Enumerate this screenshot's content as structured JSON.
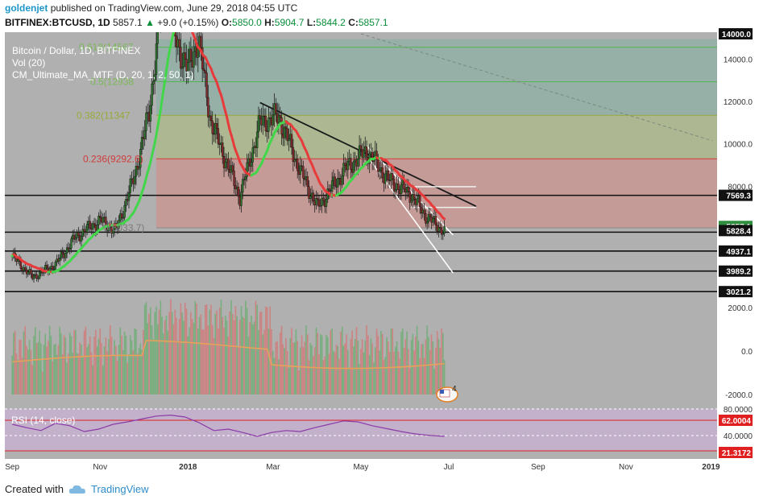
{
  "header": {
    "user": "goldenjet",
    "published": "published on TradingView.com, June 29, 2018 04:55 UTC",
    "symbol": "BITFINEX:BTCUSD, 1D",
    "price": "5857.1",
    "change": "+9.0 (+0.15%)",
    "open_label": "O:",
    "open": "5850.0",
    "high_label": "H:",
    "high": "5904.7",
    "low_label": "L:",
    "low": "5844.2",
    "close_label": "C:",
    "close": "5857.1"
  },
  "legend": {
    "title": "Bitcoin / Dollar, 1D, BITFINEX",
    "vol": "Vol (20)",
    "ma": "CM_Ultimate_MA_MTF (D, 20, 1, 2, 50, 1)",
    "rsi": "RSI (14, close)"
  },
  "footer": {
    "created_with": "Created with",
    "brand": "TradingView"
  },
  "colors": {
    "background": "#b0b0b0",
    "rsi_band": "#c8b2d2",
    "fib_red": "#c79994",
    "fib_olive": "#adb990",
    "fib_green": "#93b0a6",
    "ma_red": "#e73b3b",
    "ma_green": "#42d64a",
    "rsi_line": "#8b3aa8",
    "rsi_bound": "#e02020",
    "axis_label_bg": "#111111"
  },
  "chart_data": [
    {
      "type": "line",
      "title": "Bitcoin / Dollar, 1D, BITFINEX",
      "x_ticks": [
        "Sep",
        "Nov",
        "2018",
        "Mar",
        "May",
        "Jul",
        "Sep",
        "Nov",
        "2019"
      ],
      "y_ticks": [
        14000,
        12000,
        10000,
        8000,
        6000
      ],
      "y_range": [
        2800,
        15200
      ],
      "price_path": {
        "x": [
          "2017-09-01",
          "2017-09-15",
          "2017-10-01",
          "2017-10-15",
          "2017-11-01",
          "2017-11-12",
          "2017-11-25",
          "2017-12-05",
          "2017-12-10",
          "2017-12-17",
          "2017-12-23",
          "2018-01-01",
          "2018-01-08",
          "2018-01-17",
          "2018-02-06",
          "2018-02-20",
          "2018-03-05",
          "2018-03-20",
          "2018-04-01",
          "2018-04-20",
          "2018-05-05",
          "2018-05-20",
          "2018-06-05",
          "2018-06-15",
          "2018-06-28"
        ],
        "close": [
          4700,
          3700,
          4300,
          5600,
          6400,
          5900,
          8500,
          11500,
          14500,
          19000,
          15000,
          13500,
          15000,
          11000,
          7500,
          11000,
          11300,
          8700,
          7000,
          8800,
          9700,
          8300,
          7600,
          6600,
          5857
        ]
      },
      "fib_levels": [
        {
          "label": "0.236(9292.6)",
          "value": 9292.6
        },
        {
          "label": "0.382(11347",
          "value": 11347
        },
        {
          "label": "0.5(12938",
          "value": 12938
        },
        {
          "label": "0.618(14567",
          "value": 14567
        },
        {
          "label": "0(6033.7)",
          "value": 6033.7
        }
      ],
      "horizontal_levels": [
        7569.3,
        5828.4,
        4937.1,
        3989.2,
        3021.2
      ],
      "price_labels": [
        "7569.3",
        "5857.1",
        "5828.4",
        "4937.1",
        "3989.2",
        "3021.2"
      ],
      "top_label": "14000.0"
    },
    {
      "type": "bar",
      "title": "Vol (20)",
      "y_ticks": [
        2000,
        0,
        -2000
      ],
      "y_tick_labels": [
        "2000.0",
        "0.0",
        "-2000.0"
      ]
    },
    {
      "type": "line",
      "title": "RSI (14, close)",
      "y_ticks": [
        80,
        40
      ],
      "y_tick_labels": [
        "80.0000",
        "40.0000"
      ],
      "bounds": [
        "62.0004",
        "21.3172"
      ],
      "values": [
        55,
        48,
        42,
        57,
        52,
        40,
        45,
        55,
        60,
        66,
        72,
        74,
        70,
        58,
        42,
        45,
        38,
        30,
        38,
        42,
        40,
        48,
        55,
        62,
        60,
        52,
        46,
        40,
        35,
        32,
        30
      ]
    }
  ],
  "badge": {
    "text": "4"
  }
}
